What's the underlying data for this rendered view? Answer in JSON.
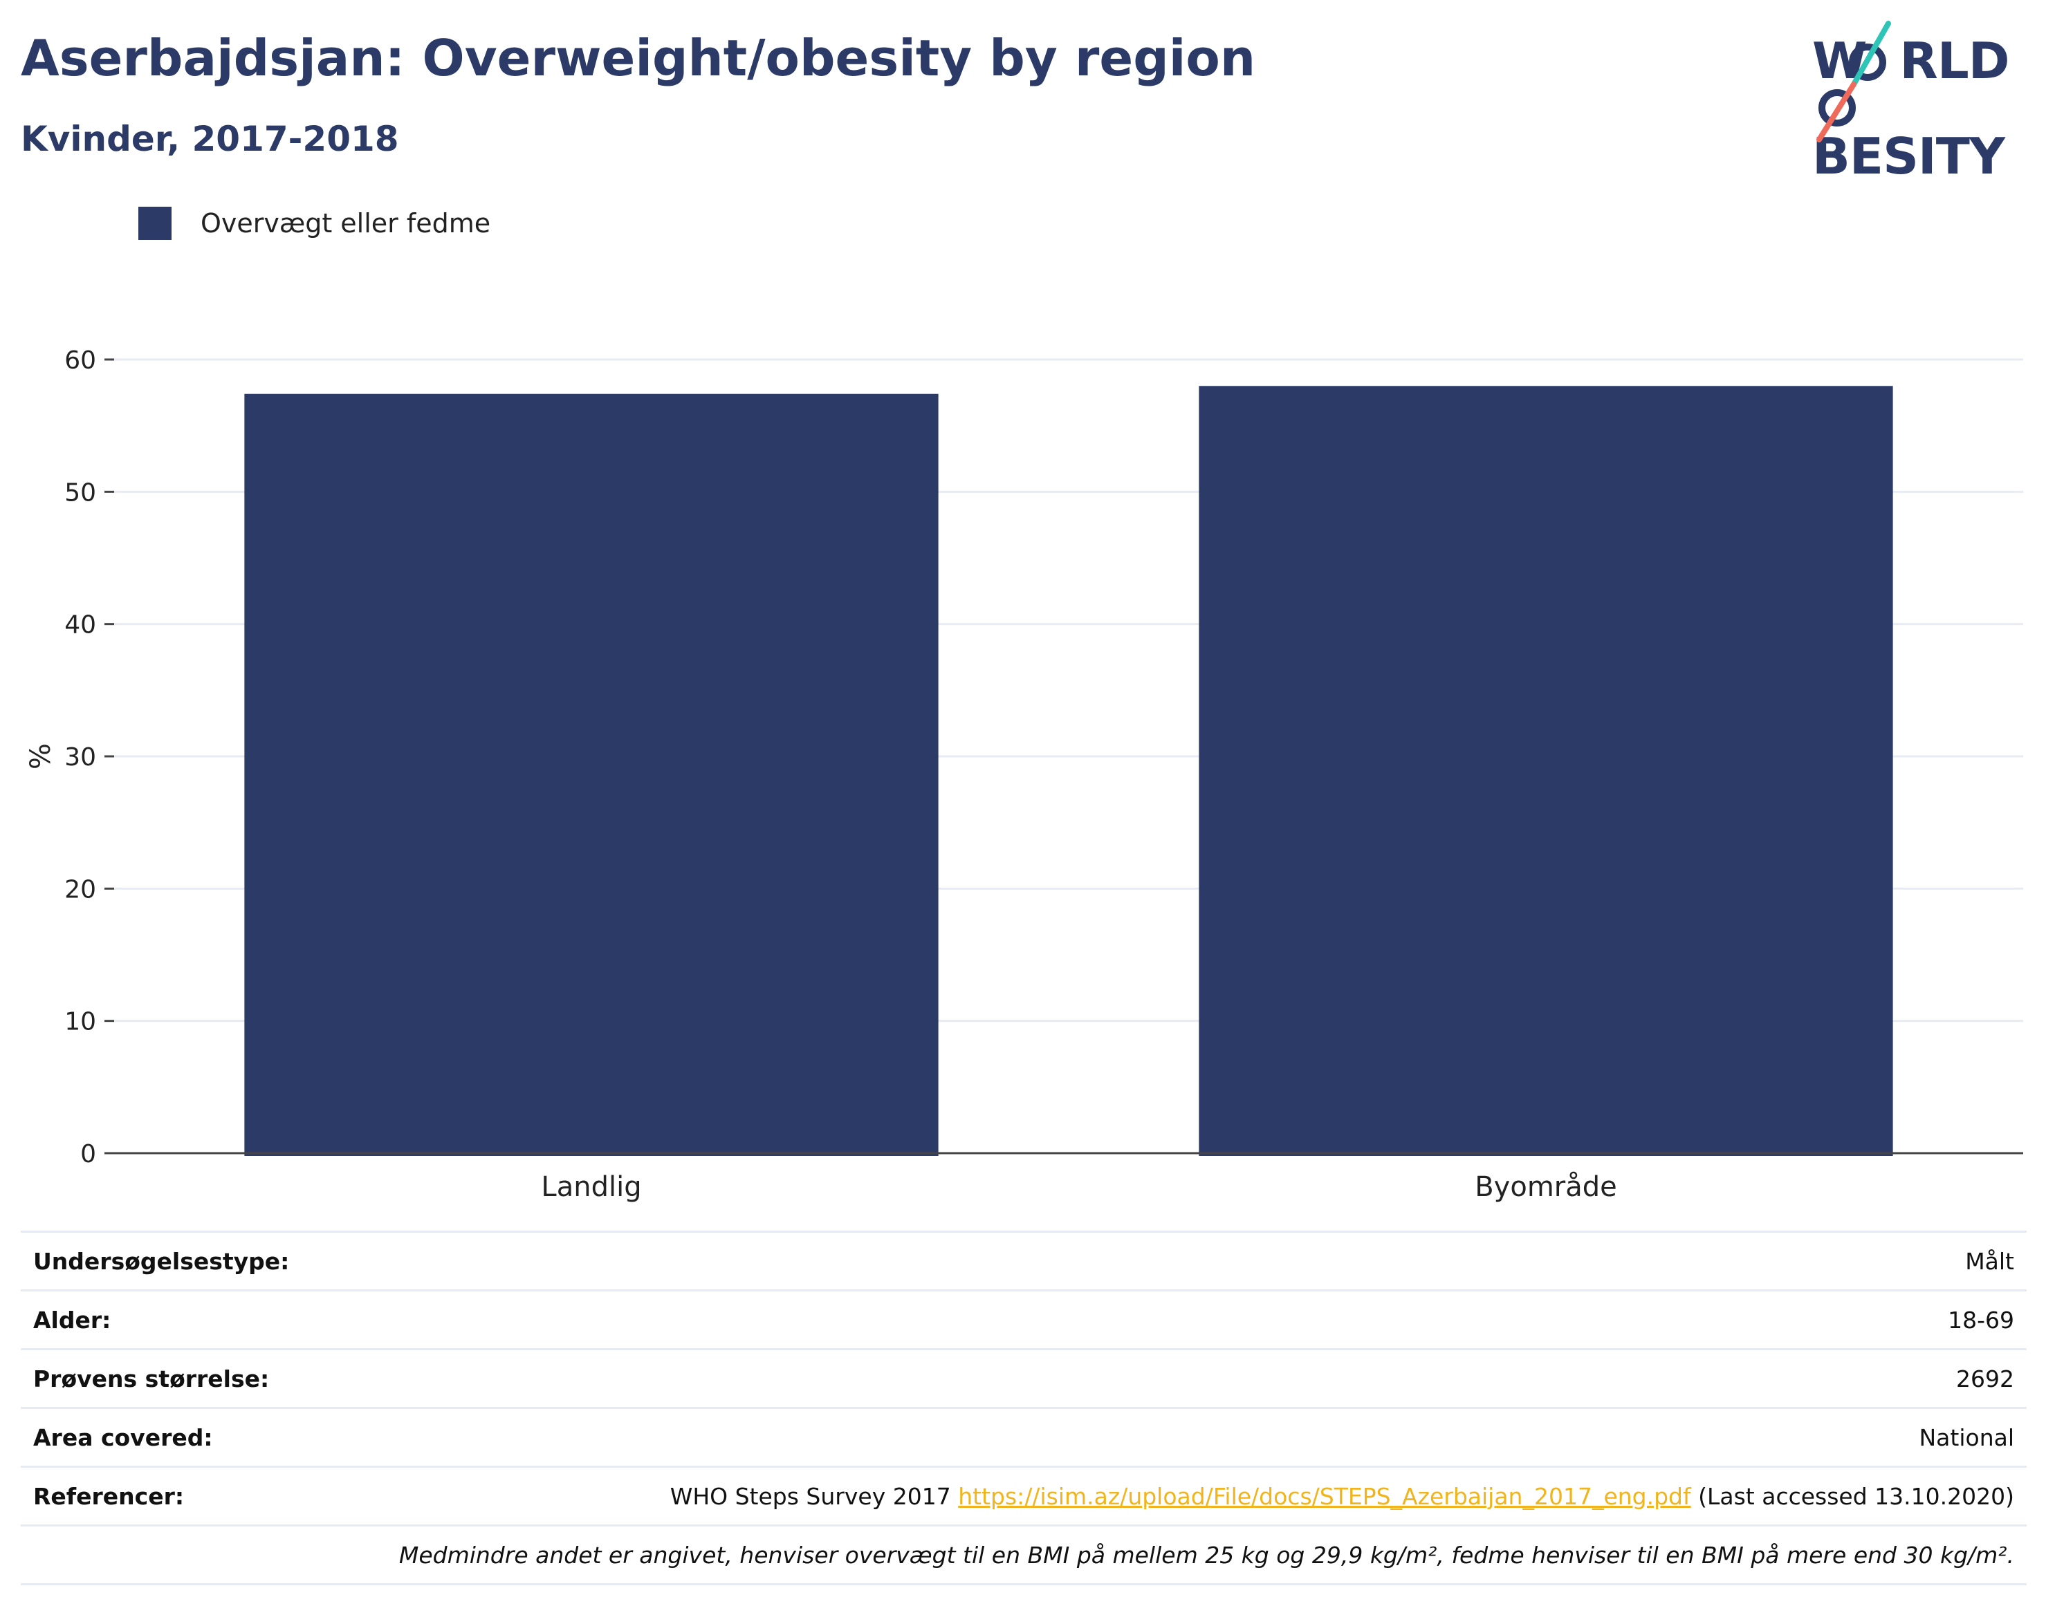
{
  "header": {
    "title": "Aserbajdsjan: Overweight/obesity by region",
    "subtitle": "Kvinder, 2017-2018"
  },
  "logo": {
    "line1": "WORLD",
    "line2": "OBESITY",
    "line1_letters": [
      "W",
      "RLD"
    ],
    "line2_letters": [
      "BESITY"
    ]
  },
  "legend": {
    "label": "Overvægt eller fedme",
    "color": "#2b3a67"
  },
  "chart_data": {
    "type": "bar",
    "categories": [
      "Landlig",
      "Byområde"
    ],
    "series": [
      {
        "name": "Overvægt eller fedme",
        "values": [
          57.4,
          58.0
        ]
      }
    ],
    "title": "",
    "xlabel": "",
    "ylabel": "%",
    "ylim": [
      0,
      60
    ],
    "yticks": [
      0,
      10,
      20,
      30,
      40,
      50,
      60
    ],
    "grid": true,
    "legend_position": "top-left",
    "bar_color": "#2b3a67"
  },
  "info": {
    "survey_type_label": "Undersøgelsestype:",
    "survey_type_value": "Målt",
    "age_label": "Alder:",
    "age_value": "18-69",
    "sample_label": "Prøvens størrelse:",
    "sample_value": "2692",
    "area_label": "Area covered:",
    "area_value": "National",
    "ref_label": "Referencer:",
    "ref_text": "WHO Steps Survey 2017",
    "ref_link": "https://isim.az/upload/File/docs/STEPS_Azerbaijan_2017_eng.pdf",
    "ref_suffix": "(Last accessed 13.10.2020)",
    "note": "Medmindre andet er angivet, henviser overvægt til en BMI på mellem 25 kg og 29,9 kg/m², fedme henviser til en BMI på mere end 30 kg/m²."
  },
  "colors": {
    "brand": "#2b3a67",
    "link": "#f0b41c",
    "accent_teal": "#2ec4b6",
    "accent_coral": "#ef6a5a"
  }
}
